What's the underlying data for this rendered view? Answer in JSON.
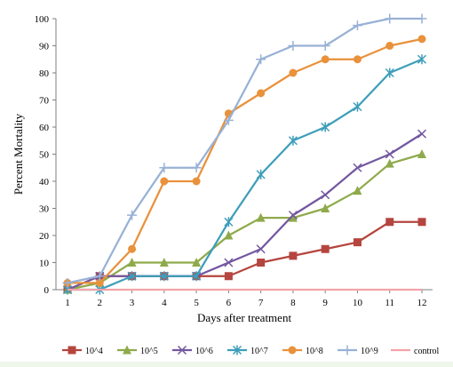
{
  "chart_data": {
    "type": "line",
    "title": "",
    "xlabel": "Days after treatment",
    "ylabel": "Percent Mortality",
    "x": [
      1,
      2,
      3,
      4,
      5,
      6,
      7,
      8,
      9,
      10,
      11,
      12
    ],
    "xlim": [
      1,
      12
    ],
    "ylim": [
      0,
      100
    ],
    "y_ticks": [
      0,
      10,
      20,
      30,
      40,
      50,
      60,
      70,
      80,
      90,
      100
    ],
    "grid": false,
    "legend_position": "bottom",
    "series": [
      {
        "name": "10^4",
        "color": "#b5453f",
        "marker": "square",
        "values": [
          0,
          5,
          5,
          5,
          5,
          5,
          10,
          12.5,
          15,
          17.5,
          25,
          25
        ]
      },
      {
        "name": "10^5",
        "color": "#8faa4b",
        "marker": "triangle",
        "values": [
          0,
          2.5,
          10,
          10,
          10,
          20,
          26.5,
          26.5,
          30,
          36.5,
          46.5,
          50
        ]
      },
      {
        "name": "10^6",
        "color": "#7357a0",
        "marker": "x",
        "values": [
          0,
          5,
          5,
          5,
          5,
          10,
          15,
          27.5,
          35,
          45,
          50,
          57.5
        ]
      },
      {
        "name": "10^7",
        "color": "#3e9eb9",
        "marker": "asterisk",
        "values": [
          0,
          0,
          5,
          5,
          5,
          25,
          42.5,
          55,
          60,
          67.5,
          80,
          85
        ]
      },
      {
        "name": "10^8",
        "color": "#e9913b",
        "marker": "circle",
        "values": [
          2.5,
          2.5,
          15,
          40,
          40,
          65,
          72.5,
          80,
          85,
          85,
          90,
          92.5
        ]
      },
      {
        "name": "10^9",
        "color": "#98b1d5",
        "marker": "plus",
        "values": [
          2.5,
          5,
          27.5,
          45,
          45,
          62.5,
          85,
          90,
          90,
          97.5,
          100,
          100
        ]
      },
      {
        "name": "control",
        "color": "#f3a3a9",
        "marker": "none",
        "values": [
          0,
          0,
          0,
          0,
          0,
          0,
          0,
          0,
          0,
          0,
          0,
          0
        ]
      }
    ]
  }
}
